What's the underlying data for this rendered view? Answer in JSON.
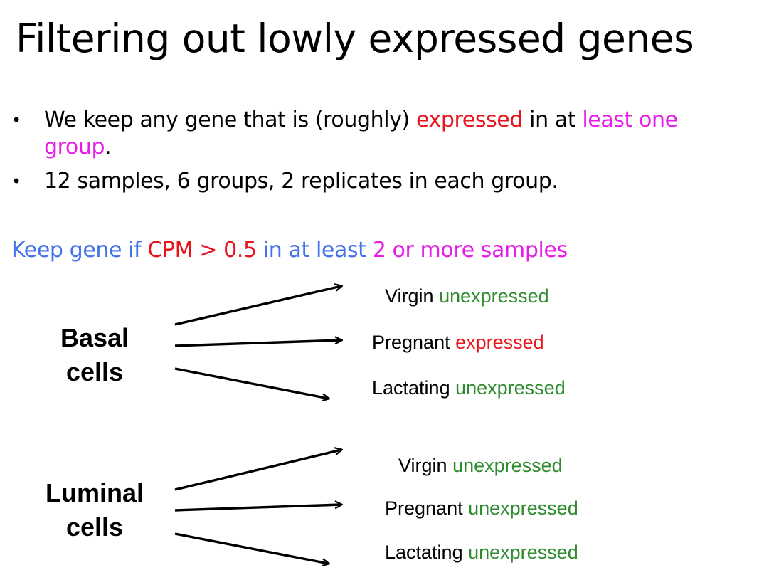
{
  "slide": {
    "title": "Filtering out lowly expressed genes",
    "bullets": [
      {
        "dot": "•",
        "parts": {
          "a": "We keep any gene that is (roughly) ",
          "b": "expressed",
          "c": " in at ",
          "d": "least one group",
          "e": "."
        }
      },
      {
        "dot": "•",
        "text": "12 samples, 6 groups, 2 replicates in each group."
      }
    ],
    "rule": {
      "a": "Keep gene if ",
      "b": "CPM > 0.5",
      "c": " in at least ",
      "d": "2 or more samples"
    }
  },
  "groups": [
    {
      "label_line1": "Basal",
      "label_line2": "cells",
      "items": [
        {
          "stage": "Virgin",
          "status": "unexpressed"
        },
        {
          "stage": "Pregnant",
          "status": "expressed"
        },
        {
          "stage": "Lactating",
          "status": "unexpressed"
        }
      ]
    },
    {
      "label_line1": "Luminal",
      "label_line2": "cells",
      "items": [
        {
          "stage": "Virgin",
          "status": "unexpressed"
        },
        {
          "stage": "Pregnant",
          "status": "unexpressed"
        },
        {
          "stage": "Lactating",
          "status": "unexpressed"
        }
      ]
    }
  ],
  "colors": {
    "blue": "#4472e8",
    "red": "#e8141c",
    "magenta": "#e81ce8",
    "green": "#2e8b2e",
    "arrow": "#000000"
  }
}
